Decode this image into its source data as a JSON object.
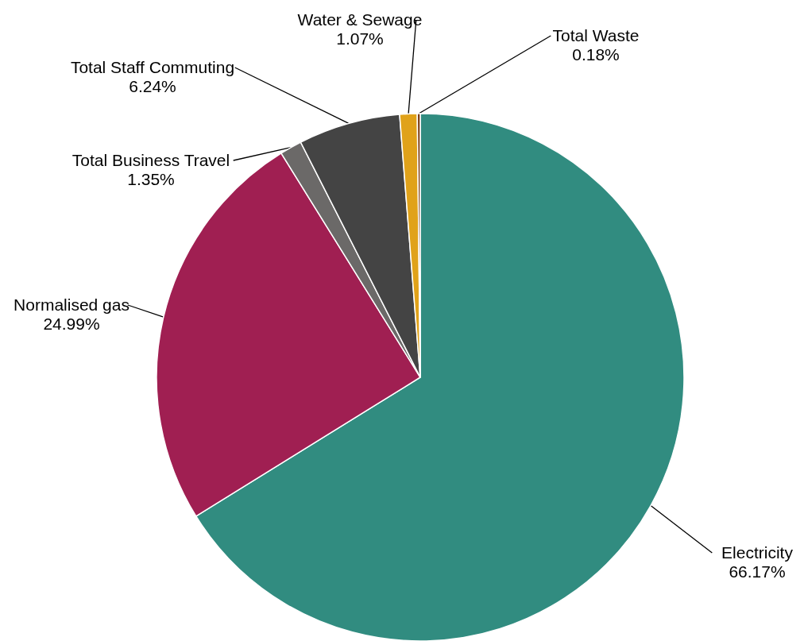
{
  "chart_data": {
    "type": "pie",
    "categories": [
      "Electricity",
      "Normalised gas",
      "Total Business Travel",
      "Total Staff Commuting",
      "Water & Sewage",
      "Total Waste"
    ],
    "values": [
      66.17,
      24.99,
      1.35,
      6.24,
      1.07,
      0.18
    ],
    "colors": [
      "#318c80",
      "#a01f52",
      "#6b6968",
      "#444444",
      "#e0a21a",
      "#7a3a10"
    ],
    "value_labels": [
      "66.17%",
      "24.99%",
      "1.35%",
      "6.24%",
      "1.07%",
      "0.18%"
    ]
  }
}
